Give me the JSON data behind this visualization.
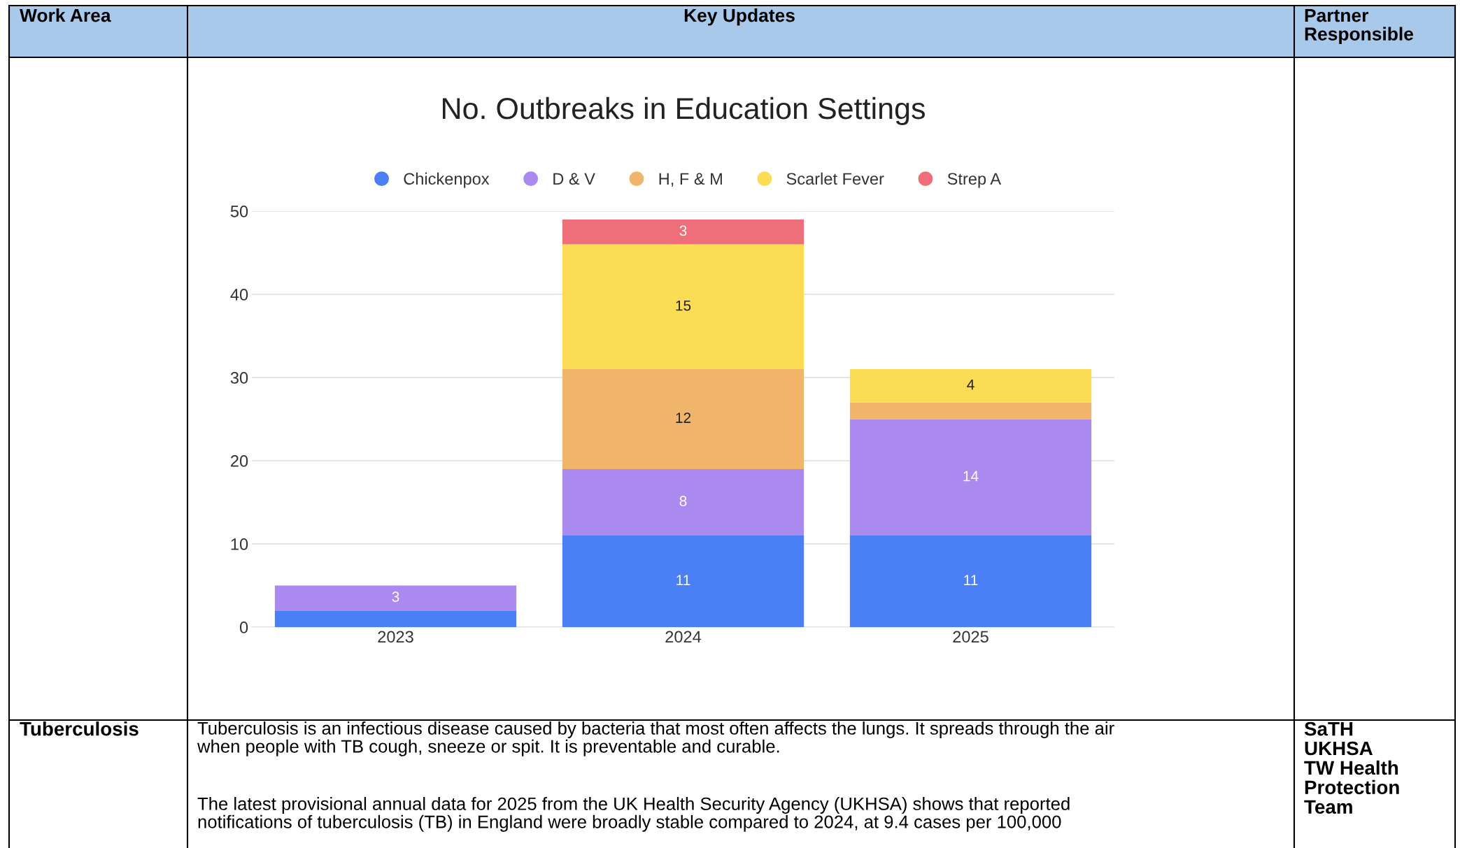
{
  "chart_data": {
    "type": "bar",
    "stacked": true,
    "title": "No. Outbreaks in Education Settings",
    "categories": [
      "2023",
      "2024",
      "2025"
    ],
    "series": [
      {
        "name": "Chickenpox",
        "color": "#4a7ff5",
        "values": [
          2,
          11,
          11
        ],
        "value_labels": [
          null,
          "11",
          "11"
        ]
      },
      {
        "name": "D & V",
        "color": "#ab8af0",
        "values": [
          3,
          8,
          14
        ],
        "value_labels": [
          "3",
          "8",
          "14"
        ]
      },
      {
        "name": "H, F & M",
        "color": "#f0b56a",
        "values": [
          0,
          12,
          2
        ],
        "value_labels": [
          null,
          "12",
          null
        ]
      },
      {
        "name": "Scarlet Fever",
        "color": "#fddc55",
        "values": [
          0,
          15,
          4
        ],
        "value_labels": [
          null,
          "15",
          "4"
        ]
      },
      {
        "name": "Strep A",
        "color": "#ee6f7a",
        "values": [
          0,
          3,
          0
        ],
        "value_labels": [
          null,
          "3",
          null
        ]
      }
    ],
    "ylim": [
      0,
      50
    ],
    "yticks": [
      0,
      10,
      20,
      30,
      40,
      50
    ],
    "grid": "y",
    "legend": "top",
    "annotations": [
      "Work Area",
      "Key Updates",
      "Partner\nResponsible",
      "Tuberculosis",
      "Tuberculosis is an infectious disease caused by bacteria that most often affects the lungs. It spreads through the air\nwhen people with TB cough, sneeze or spit. It is preventable and curable.",
      "The latest provisional annual data for 2025 from the UK Health Security Agency (UKHSA) shows that reported\nnotifications of tuberculosis (TB) in England were broadly stable compared to 2024, at 9.4 cases per 100,000",
      "SaTH\nUKHSA\nTW Health\nProtection\nTeam"
    ]
  }
}
